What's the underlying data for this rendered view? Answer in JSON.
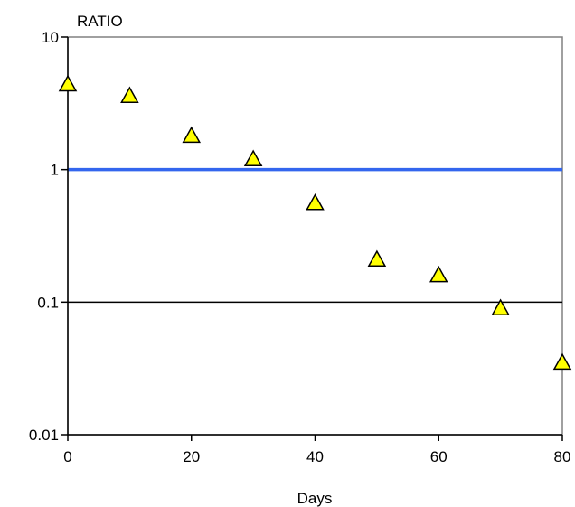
{
  "chart_data": {
    "type": "scatter",
    "title": "",
    "xlabel": "Days",
    "ylabel": "RATIO",
    "xlim": [
      0,
      80
    ],
    "ylim": [
      0.01,
      10
    ],
    "yscale": "log",
    "grid": false,
    "x_ticks": [
      "0",
      "20",
      "40",
      "60",
      "80"
    ],
    "y_ticks": [
      "0.01",
      "0.1",
      "1",
      "10"
    ],
    "reference_lines": [
      {
        "y": 1,
        "color": "#3366ee"
      },
      {
        "y": 0.1,
        "color": "#000000"
      }
    ],
    "series": [
      {
        "marker": "triangle",
        "color": "#ffff00",
        "edge_color": "#000000",
        "x": [
          0,
          10,
          20,
          30,
          40,
          50,
          60,
          70,
          80
        ],
        "y": [
          4.4,
          3.6,
          1.8,
          1.2,
          0.56,
          0.21,
          0.16,
          0.09,
          0.035
        ]
      }
    ]
  }
}
